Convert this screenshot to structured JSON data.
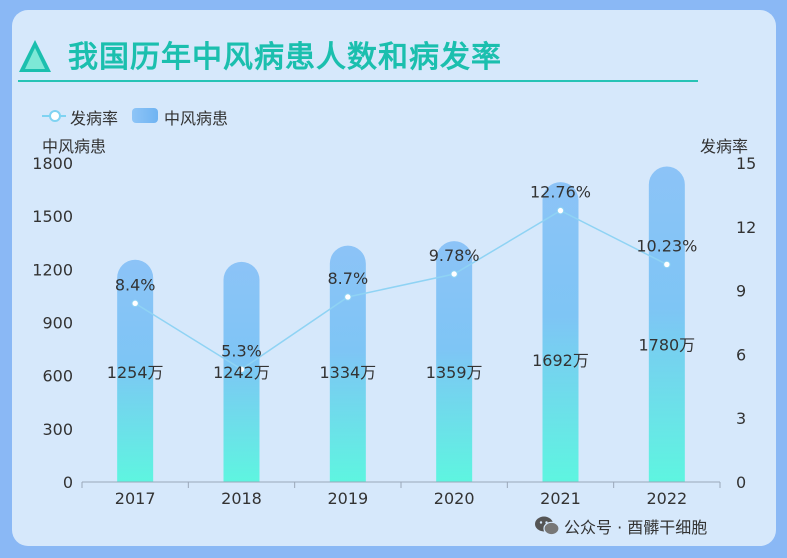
{
  "title": "我国历年中风病患人数和病发率",
  "legend": {
    "line_label": "发病率",
    "bar_label": "中风病患"
  },
  "left_axis_title": "中风病患",
  "right_axis_title": "发病率",
  "footer": {
    "text": "公众号 · 酉髒干细胞",
    "icon": "wechat-icon"
  },
  "colors": {
    "title": "#1bbfae",
    "bar_top": "#8cc3f7",
    "bar_bottom": "#5ef5e0",
    "line": "#7fd3f2",
    "background": "#d6e8fb"
  },
  "chart_data": {
    "type": "bar",
    "categories": [
      "2017",
      "2018",
      "2019",
      "2020",
      "2021",
      "2022"
    ],
    "series": [
      {
        "name": "中风病患",
        "type": "bar",
        "axis": "left",
        "values": [
          1254,
          1242,
          1334,
          1359,
          1692,
          1780
        ],
        "labels": [
          "1254万",
          "1242万",
          "1334万",
          "1359万",
          "1692万",
          "1780万"
        ]
      },
      {
        "name": "发病率",
        "type": "line",
        "axis": "right",
        "values": [
          8.4,
          5.3,
          8.7,
          9.78,
          12.76,
          10.23
        ],
        "labels": [
          "8.4%",
          "5.3%",
          "8.7%",
          "9.78%",
          "12.76%",
          "10.23%"
        ]
      }
    ],
    "left_axis": {
      "min": 0,
      "max": 1800,
      "ticks": [
        "0",
        "300",
        "600",
        "900",
        "1200",
        "1500",
        "1800"
      ]
    },
    "right_axis": {
      "min": 0,
      "max": 15,
      "ticks": [
        "0",
        "3",
        "6",
        "9",
        "12",
        "15"
      ]
    },
    "grid": false,
    "legend_position": "top-left"
  }
}
